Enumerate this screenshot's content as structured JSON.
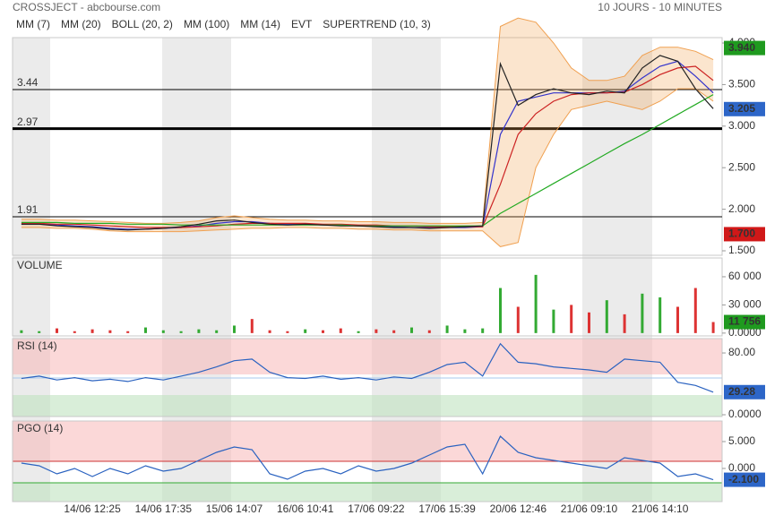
{
  "header": {
    "title": "CROSSJECT - abcbourse.com",
    "period": "10 JOURS - 10 MINUTES"
  },
  "chart_data": [
    {
      "type": "line",
      "price": {
        "color": "#222222",
        "values": [
          1.82,
          1.82,
          1.8,
          1.79,
          1.78,
          1.76,
          1.75,
          1.76,
          1.77,
          1.79,
          1.82,
          1.86,
          1.87,
          1.84,
          1.82,
          1.81,
          1.82,
          1.81,
          1.8,
          1.8,
          1.79,
          1.78,
          1.78,
          1.77,
          1.78,
          1.79,
          1.8,
          3.75,
          3.25,
          3.38,
          3.45,
          3.4,
          3.38,
          3.42,
          3.4,
          3.7,
          3.85,
          3.78,
          3.45,
          3.21
        ]
      },
      "series": [
        {
          "name": "MM (7)",
          "color": "#3333cc",
          "values": [
            1.82,
            1.82,
            1.81,
            1.8,
            1.79,
            1.77,
            1.76,
            1.76,
            1.77,
            1.78,
            1.8,
            1.83,
            1.85,
            1.85,
            1.83,
            1.82,
            1.82,
            1.81,
            1.81,
            1.8,
            1.8,
            1.79,
            1.78,
            1.78,
            1.78,
            1.78,
            1.79,
            2.9,
            3.3,
            3.35,
            3.4,
            3.4,
            3.4,
            3.4,
            3.42,
            3.58,
            3.72,
            3.78,
            3.6,
            3.4
          ]
        },
        {
          "name": "MM (20)",
          "color": "#cc2222",
          "values": [
            1.83,
            1.83,
            1.82,
            1.82,
            1.81,
            1.8,
            1.79,
            1.78,
            1.78,
            1.78,
            1.79,
            1.8,
            1.82,
            1.83,
            1.83,
            1.83,
            1.83,
            1.82,
            1.82,
            1.81,
            1.81,
            1.8,
            1.8,
            1.79,
            1.79,
            1.79,
            1.79,
            2.3,
            2.9,
            3.15,
            3.3,
            3.38,
            3.4,
            3.4,
            3.41,
            3.5,
            3.62,
            3.7,
            3.72,
            3.55
          ]
        },
        {
          "name": "BOLL (20, 2)",
          "color": "#f0a050",
          "upper": [
            1.88,
            1.88,
            1.87,
            1.87,
            1.86,
            1.85,
            1.84,
            1.83,
            1.83,
            1.84,
            1.86,
            1.9,
            1.92,
            1.9,
            1.88,
            1.87,
            1.87,
            1.86,
            1.86,
            1.85,
            1.85,
            1.84,
            1.84,
            1.83,
            1.83,
            1.83,
            1.84,
            4.2,
            4.3,
            4.25,
            4.0,
            3.7,
            3.55,
            3.55,
            3.6,
            3.85,
            3.95,
            3.95,
            3.9,
            3.8
          ],
          "lower": [
            1.78,
            1.78,
            1.77,
            1.77,
            1.76,
            1.74,
            1.73,
            1.73,
            1.73,
            1.73,
            1.74,
            1.75,
            1.76,
            1.77,
            1.77,
            1.78,
            1.78,
            1.77,
            1.77,
            1.76,
            1.76,
            1.75,
            1.75,
            1.74,
            1.74,
            1.74,
            1.74,
            1.55,
            1.6,
            2.5,
            2.9,
            3.2,
            3.25,
            3.3,
            3.25,
            3.2,
            3.3,
            3.45,
            3.45,
            3.3
          ]
        },
        {
          "name": "MM (100)",
          "color": "#22aa22",
          "values": [
            1.84,
            1.84,
            1.84,
            1.83,
            1.83,
            1.83,
            1.82,
            1.82,
            1.82,
            1.81,
            1.81,
            1.81,
            1.81,
            1.81,
            1.81,
            1.81,
            1.81,
            1.81,
            1.81,
            1.8,
            1.8,
            1.8,
            1.8,
            1.8,
            1.8,
            1.8,
            1.8,
            1.95,
            2.07,
            2.19,
            2.31,
            2.43,
            2.55,
            2.67,
            2.79,
            2.9,
            3.02,
            3.14,
            3.26,
            3.38
          ]
        }
      ],
      "indicators": [
        {
          "name": "MM (14)",
          "color": "#222222"
        },
        {
          "name": "EVT",
          "color": "#222222"
        },
        {
          "name": "SUPERTREND (10, 3)",
          "color": "#aa1a2a"
        }
      ],
      "levels": [
        3.44,
        2.97,
        1.91
      ],
      "badges": [
        {
          "value": 3.94,
          "label": "3.940",
          "color": "#1f9a1f"
        },
        {
          "value": 3.205,
          "label": "3.205",
          "color": "#2d66c8"
        },
        {
          "value": 1.7,
          "label": "1.700",
          "color": "#d01818"
        }
      ],
      "ylim": [
        1.446,
        4.065
      ],
      "yticks": [
        {
          "value": 1.5,
          "label": "1.500"
        },
        {
          "value": 2,
          "label": "2.000"
        },
        {
          "value": 2.5,
          "label": "2.500"
        },
        {
          "value": 3,
          "label": "3.000"
        },
        {
          "value": 3.5,
          "label": "3.500"
        },
        {
          "value": 4,
          "label": "4.000"
        }
      ]
    },
    {
      "type": "bar",
      "title": "VOLUME",
      "colors": {
        "up": "#33aa33",
        "down": "#dd3333"
      },
      "values": [
        3000,
        2000,
        5000,
        2000,
        4000,
        3000,
        2000,
        6000,
        3000,
        2000,
        4000,
        3000,
        8000,
        15000,
        3000,
        2000,
        4000,
        3000,
        5000,
        2000,
        4000,
        3000,
        6000,
        3000,
        8000,
        4000,
        5000,
        48000,
        28000,
        62000,
        25000,
        30000,
        22000,
        35000,
        20000,
        42000,
        38000,
        28000,
        48000,
        11756
      ],
      "last_label": "11 756",
      "badge_color": "#1f9a1f",
      "ylim": [
        -3000,
        80000
      ],
      "yticks": [
        {
          "value": 0,
          "label": "0.0000"
        },
        {
          "value": 30000,
          "label": "30 000"
        },
        {
          "value": 60000,
          "label": "60 000"
        }
      ]
    },
    {
      "type": "line",
      "title": "RSI (14)",
      "color": "#2a62c0",
      "values": [
        47,
        50,
        45,
        48,
        44,
        46,
        43,
        48,
        45,
        50,
        55,
        62,
        70,
        72,
        55,
        48,
        47,
        50,
        46,
        48,
        45,
        49,
        47,
        55,
        65,
        68,
        50,
        92,
        68,
        66,
        62,
        60,
        58,
        55,
        72,
        70,
        68,
        42,
        38,
        29.28
      ],
      "last_label": "29.28",
      "badge_color": "#2d66c8",
      "ylim": [
        -2.3,
        98.6
      ],
      "yticks": [
        {
          "value": 0,
          "label": "0.0000"
        },
        {
          "value": 80,
          "label": "80.00"
        }
      ]
    },
    {
      "type": "line",
      "title": "PGO (14)",
      "color": "#2a62c0",
      "values": [
        1,
        0.5,
        -1,
        0,
        -1.5,
        0,
        -1,
        0.5,
        -0.5,
        0,
        1.5,
        3,
        4,
        3.5,
        -1,
        -2,
        -0.5,
        0,
        -1,
        0.5,
        -0.5,
        0,
        1,
        2.5,
        4,
        4.5,
        -1,
        6,
        3,
        2,
        1.5,
        1,
        0.5,
        0,
        2,
        1.5,
        1,
        -1.5,
        -1,
        -2.1
      ],
      "last_label": "-2.100",
      "badge_color": "#2d66c8",
      "ylim": [
        -6.17,
        8.83
      ],
      "yticks": [
        {
          "value": 0,
          "label": "0.000"
        },
        {
          "value": 5,
          "label": "5.000"
        }
      ],
      "categories": [
        null,
        null,
        null,
        null,
        "14/06 12:25",
        null,
        null,
        null,
        "14/06 17:35",
        null,
        null,
        null,
        "15/06 14:07",
        null,
        null,
        null,
        "16/06 10:41",
        null,
        null,
        null,
        "17/06 09:22",
        null,
        null,
        null,
        "17/06 15:39",
        null,
        null,
        null,
        "20/06 12:46",
        null,
        null,
        null,
        "21/06 09:10",
        null,
        null,
        null,
        "21/06 14:10",
        null,
        null,
        null
      ]
    }
  ]
}
